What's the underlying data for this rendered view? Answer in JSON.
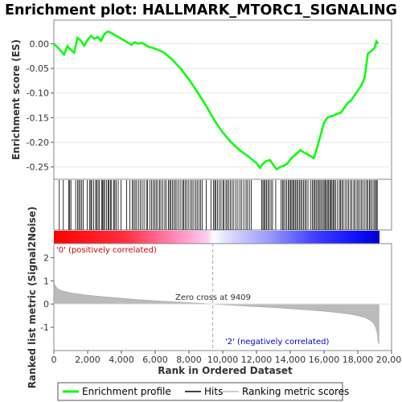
{
  "chart_data": {
    "type": "line",
    "title": "Enrichment plot: HALLMARK_MTORC1_SIGNALING",
    "panels": {
      "es": {
        "ylabel": "Enrichment score (ES)",
        "ylim": [
          -0.275,
          0.048
        ],
        "yticks": [
          0.0,
          -0.05,
          -0.1,
          -0.15,
          -0.2,
          -0.25
        ],
        "ytick_labels": [
          "0.00",
          "-0.05",
          "-0.10",
          "-0.15",
          "-0.20",
          "-0.25"
        ],
        "series": [
          {
            "name": "Enrichment profile",
            "color": "#00ff00",
            "x": [
              0,
              300,
              600,
              800,
              1000,
              1200,
              1400,
              1600,
              1800,
              2000,
              2200,
              2400,
              2600,
              2800,
              3000,
              3200,
              3400,
              3600,
              3800,
              4000,
              4200,
              4400,
              4600,
              4800,
              5000,
              5200,
              5400,
              5600,
              5800,
              6000,
              6200,
              6400,
              6600,
              6800,
              7000,
              7500,
              8000,
              8500,
              9000,
              9500,
              10000,
              10500,
              11000,
              11500,
              12000,
              12200,
              12400,
              12600,
              12800,
              13000,
              13200,
              13400,
              13600,
              13800,
              14000,
              14200,
              14400,
              14600,
              14800,
              15000,
              15200,
              15400,
              15600,
              15800,
              16000,
              16200,
              16400,
              16600,
              16800,
              17000,
              17200,
              17400,
              17600,
              17800,
              18000,
              18200,
              18400,
              18600,
              18800,
              19000,
              19100,
              19200
            ],
            "y": [
              0.0,
              -0.01,
              -0.022,
              -0.005,
              -0.012,
              -0.018,
              0.012,
              0.006,
              -0.004,
              0.008,
              0.016,
              0.01,
              0.014,
              0.006,
              0.02,
              0.025,
              0.022,
              0.018,
              0.014,
              0.01,
              0.006,
              0.002,
              -0.002,
              0.003,
              0.0,
              0.002,
              -0.002,
              -0.006,
              -0.008,
              -0.01,
              -0.013,
              -0.016,
              -0.02,
              -0.026,
              -0.032,
              -0.05,
              -0.072,
              -0.098,
              -0.125,
              -0.155,
              -0.18,
              -0.2,
              -0.216,
              -0.228,
              -0.242,
              -0.252,
              -0.243,
              -0.238,
              -0.236,
              -0.246,
              -0.255,
              -0.25,
              -0.248,
              -0.244,
              -0.235,
              -0.228,
              -0.222,
              -0.216,
              -0.22,
              -0.224,
              -0.228,
              -0.232,
              -0.21,
              -0.185,
              -0.16,
              -0.15,
              -0.147,
              -0.145,
              -0.142,
              -0.14,
              -0.13,
              -0.12,
              -0.115,
              -0.105,
              -0.095,
              -0.085,
              -0.07,
              -0.02,
              -0.015,
              -0.008,
              0.005,
              0.0
            ]
          }
        ]
      },
      "hits": {
        "legend_label": "Hits",
        "positions": [
          320,
          560,
          880,
          940,
          1010,
          1290,
          1410,
          1480,
          1560,
          1650,
          1740,
          1980,
          2110,
          2190,
          2240,
          2360,
          2480,
          2530,
          2620,
          2700,
          2830,
          2890,
          2950,
          3010,
          3120,
          3220,
          3270,
          3360,
          3420,
          3550,
          3610,
          3690,
          3810,
          3980,
          4310,
          4500,
          4640,
          4720,
          4810,
          4900,
          5010,
          5120,
          5230,
          5340,
          5480,
          5550,
          5680,
          5790,
          5880,
          5970,
          6060,
          6150,
          6260,
          6340,
          6450,
          6570,
          6660,
          6780,
          6860,
          6930,
          7020,
          7110,
          7200,
          7290,
          7410,
          7520,
          7630,
          7700,
          7790,
          7880,
          7990,
          8100,
          8190,
          8290,
          8400,
          8490,
          8590,
          8690,
          8780,
          9020,
          9310,
          9460,
          9530,
          9600,
          9690,
          9800,
          9900,
          10010,
          10080,
          10190,
          10260,
          10360,
          10450,
          10560,
          10660,
          10790,
          10900,
          11020,
          11130,
          11250,
          11380,
          11470,
          11580,
          11690,
          12310,
          12380,
          12450,
          12520,
          12600,
          12680,
          12760,
          12860,
          12950,
          13140,
          13460,
          13540,
          13610,
          13700,
          13790,
          13880,
          13950,
          14020,
          14090,
          14160,
          14230,
          14300,
          14380,
          14450,
          14540,
          14620,
          14700,
          14790,
          14870,
          14950,
          15050,
          15200,
          15300,
          15380,
          15450,
          15530,
          15610,
          15690,
          15760,
          15840,
          15920,
          16000,
          16060,
          16130,
          16200,
          16270,
          16340,
          16400,
          16470,
          16540,
          16610,
          16680,
          16800,
          16910,
          16980,
          17060,
          17140,
          17250,
          17360,
          17450,
          17560,
          17650,
          17760,
          17840,
          17950,
          18020,
          18130,
          18220,
          18310,
          18420,
          18520,
          18600,
          18690,
          18760,
          18850,
          18950,
          19030,
          19100,
          19150
        ]
      },
      "ranked_metric": {
        "ylabel": "Ranked list metric (Signal2Noise)",
        "xlabel": "Rank in Ordered Dataset",
        "xlim": [
          0,
          20000
        ],
        "xticks": [
          0,
          2000,
          4000,
          6000,
          8000,
          10000,
          12000,
          14000,
          16000,
          18000,
          20000
        ],
        "xtick_labels": [
          "0",
          "2,000",
          "4,000",
          "6,000",
          "8,000",
          "10,000",
          "12,000",
          "14,000",
          "16,000",
          "18,000",
          "20,000"
        ],
        "ylim": [
          -2.0,
          2.6
        ],
        "yticks": [
          2,
          1,
          0,
          -1
        ],
        "ytick_labels": [
          "2",
          "1",
          "0",
          "-1"
        ],
        "x": [
          0,
          50,
          150,
          300,
          600,
          1000,
          2000,
          3000,
          4000,
          5000,
          6000,
          7000,
          8000,
          9000,
          9409,
          10000,
          11000,
          12000,
          13000,
          14000,
          15000,
          16000,
          17000,
          17500,
          18000,
          18400,
          18700,
          18900,
          19050,
          19150,
          19200,
          19250
        ],
        "values": [
          1.05,
          0.85,
          0.72,
          0.62,
          0.55,
          0.48,
          0.38,
          0.31,
          0.25,
          0.19,
          0.14,
          0.1,
          0.06,
          0.02,
          0.0,
          -0.03,
          -0.07,
          -0.11,
          -0.15,
          -0.2,
          -0.25,
          -0.31,
          -0.38,
          -0.43,
          -0.5,
          -0.58,
          -0.68,
          -0.8,
          -0.98,
          -1.25,
          -1.6,
          -1.72
        ],
        "zero_cross": 9409,
        "zero_cross_label": "Zero cross at 9409",
        "positive_label": "'0' (positively correlated)",
        "negative_label": "'2' (negatively correlated)"
      }
    },
    "legend": {
      "placement": "bottom",
      "items": [
        "Enrichment profile",
        "Hits",
        "Ranking metric scores"
      ]
    },
    "colors": {
      "es_line": "#00ff00",
      "positive": "#ff0000",
      "negative": "#0000ff",
      "metric_fill": "#bbbbbb",
      "positive_text": "#cc0000",
      "negative_text": "#0000cc"
    }
  }
}
